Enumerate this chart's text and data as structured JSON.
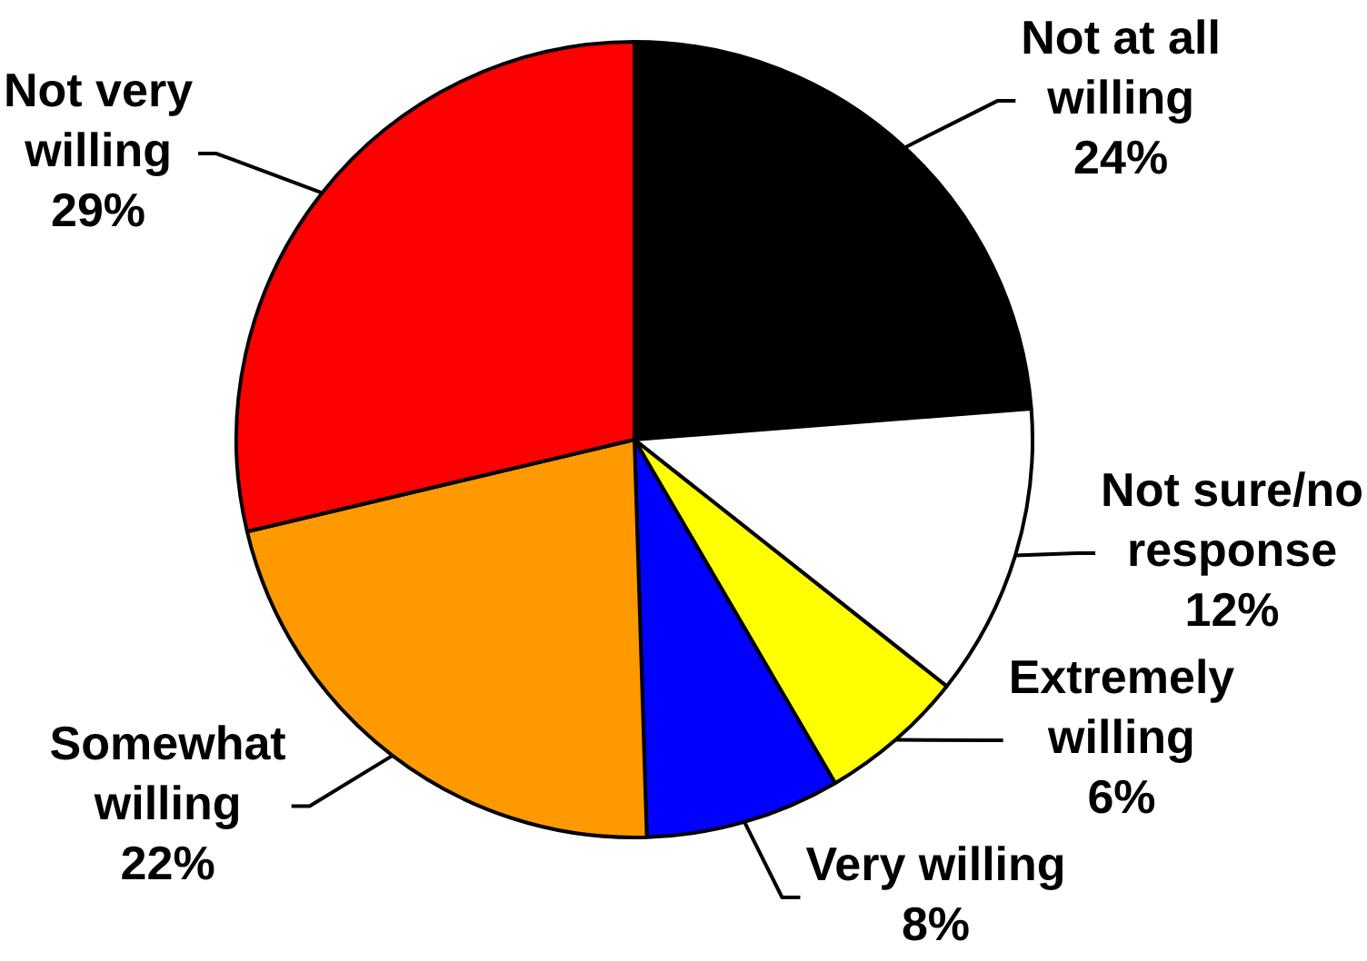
{
  "chart_data": {
    "type": "pie",
    "categories": [
      "Not at all willing",
      "Not sure/no response",
      "Extremely willing",
      "Very willing",
      "Somewhat willing",
      "Not very willing"
    ],
    "values": [
      24,
      12,
      6,
      8,
      22,
      29
    ],
    "colors": [
      "#000000",
      "#ffffff",
      "#ffff00",
      "#0000ff",
      "#ff9900",
      "#ff0000"
    ],
    "value_labels": [
      "24%",
      "12%",
      "6%",
      "8%",
      "22%",
      "29%"
    ]
  }
}
